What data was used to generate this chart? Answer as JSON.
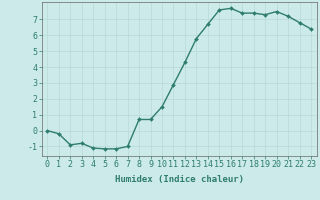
{
  "x": [
    0,
    1,
    2,
    3,
    4,
    5,
    6,
    7,
    8,
    9,
    10,
    11,
    12,
    13,
    14,
    15,
    16,
    17,
    18,
    19,
    20,
    21,
    22,
    23
  ],
  "y": [
    0.0,
    -0.2,
    -0.9,
    -0.8,
    -1.1,
    -1.15,
    -1.15,
    -1.0,
    0.7,
    0.7,
    1.5,
    2.9,
    4.3,
    5.8,
    6.7,
    7.6,
    7.7,
    7.4,
    7.4,
    7.3,
    7.5,
    7.2,
    6.8,
    6.4
  ],
  "line_color": "#2e7d6e",
  "marker": "D",
  "markersize": 2.0,
  "linewidth": 1.0,
  "background_color": "#cceaea",
  "grid_color": "#b8d8d8",
  "xlabel": "Humidex (Indice chaleur)",
  "xlabel_fontsize": 6.5,
  "yticks": [
    -1,
    0,
    1,
    2,
    3,
    4,
    5,
    6,
    7
  ],
  "xlim": [
    -0.5,
    23.5
  ],
  "ylim": [
    -1.6,
    8.1
  ],
  "tick_fontsize": 6.0
}
